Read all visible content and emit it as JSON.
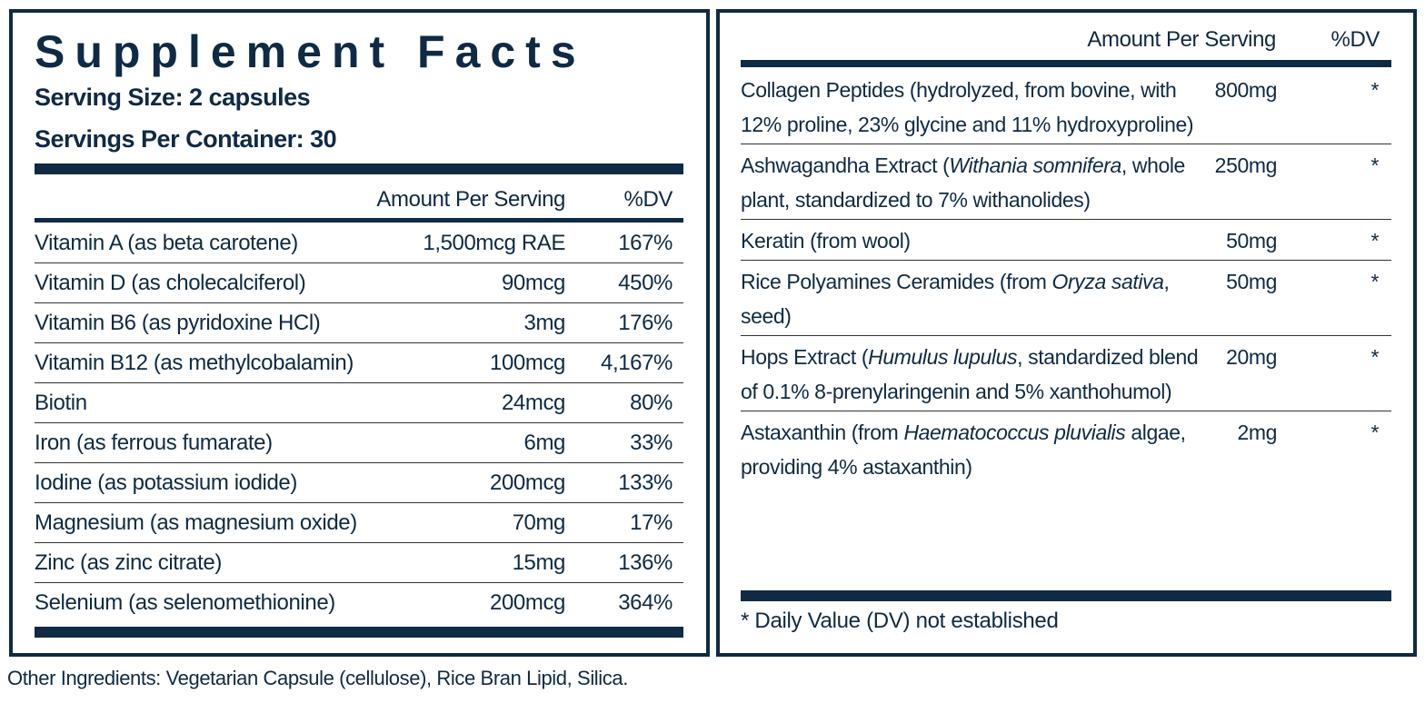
{
  "title": "Supplement Facts",
  "serving_size": "Serving Size: 2 capsules",
  "servings_per_container": "Servings Per Container: 30",
  "left_table": {
    "headers": [
      "Amount Per Serving",
      "%DV"
    ],
    "rows": [
      {
        "name": "Vitamin A (as beta carotene)",
        "amount": "1,500mcg RAE",
        "dv": "167%"
      },
      {
        "name": "Vitamin D (as cholecalciferol)",
        "amount": "90mcg",
        "dv": "450%"
      },
      {
        "name": "Vitamin B6 (as pyridoxine HCl)",
        "amount": "3mg",
        "dv": "176%"
      },
      {
        "name": "Vitamin B12 (as methylcobalamin)",
        "amount": "100mcg",
        "dv": "4,167%"
      },
      {
        "name": "Biotin",
        "amount": "24mcg",
        "dv": "80%"
      },
      {
        "name": "Iron (as ferrous fumarate)",
        "amount": "6mg",
        "dv": "33%"
      },
      {
        "name": "Iodine (as potassium iodide)",
        "amount": "200mcg",
        "dv": "133%"
      },
      {
        "name": "Magnesium (as magnesium oxide)",
        "amount": "70mg",
        "dv": "17%"
      },
      {
        "name": "Zinc (as zinc citrate)",
        "amount": "15mg",
        "dv": "136%"
      },
      {
        "name": "Selenium (as selenomethionine)",
        "amount": "200mcg",
        "dv": "364%"
      }
    ]
  },
  "right_table": {
    "headers": [
      "Amount Per Serving",
      "%DV"
    ],
    "rows": [
      {
        "name": [
          "Collagen Peptides (hydrolyzed, from bovine, with 12% proline, 23% glycine and 11% hydroxyproline)"
        ],
        "amount": "800mg",
        "dv": "*"
      },
      {
        "name": [
          "Ashwagandha Extract (",
          {
            "text": "Withania somnifera",
            "italic": true
          },
          ", whole plant, standardized to 7% withanolides)"
        ],
        "amount": "250mg",
        "dv": "*"
      },
      {
        "name": [
          "Keratin (from wool)"
        ],
        "amount": "50mg",
        "dv": "*"
      },
      {
        "name": [
          "Rice Polyamines Ceramides (from ",
          {
            "text": "Oryza sativa",
            "italic": true
          },
          ", seed)"
        ],
        "amount": "50mg",
        "dv": "*"
      },
      {
        "name": [
          "Hops Extract (",
          {
            "text": "Humulus lupulus",
            "italic": true
          },
          ", standardized blend of 0.1% 8-prenylaringenin and 5% xanthohumol)"
        ],
        "amount": "20mg",
        "dv": "*"
      },
      {
        "name": [
          "Astaxanthin (from ",
          {
            "text": "Haematococcus pluvialis",
            "italic": true
          },
          " algae, providing 4% astaxanthin)"
        ],
        "amount": "2mg",
        "dv": "*"
      }
    ]
  },
  "footnote": "* Daily Value (DV) not established",
  "other_ingredients": "Other Ingredients: Vegetarian Capsule (cellulose), Rice Bran Lipid, Silica."
}
